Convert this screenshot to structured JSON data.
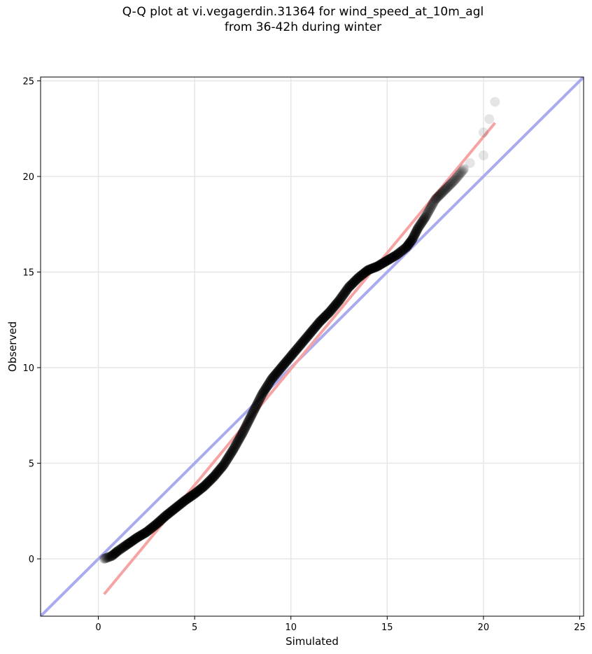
{
  "chart_data": {
    "type": "scatter",
    "title_line1": "Q-Q plot at vi.vegagerdin.31364 for wind_speed_at_10m_agl",
    "title_line2": "from 36-42h during winter",
    "xlabel": "Simulated",
    "ylabel": "Observed",
    "xlim": [
      -3.0,
      25.2
    ],
    "ylim": [
      -3.0,
      25.2
    ],
    "xticks": [
      "0",
      "5",
      "10",
      "15",
      "20",
      "25"
    ],
    "yticks": [
      "0",
      "5",
      "10",
      "15",
      "20",
      "25"
    ],
    "grid": true,
    "colors": {
      "points": "#000000",
      "identity_line": "#aaaaee",
      "fit_line": "#f5a3a3"
    },
    "identity_line": {
      "from": [
        -3.0,
        -3.0
      ],
      "to": [
        25.2,
        25.2
      ]
    },
    "fit_line": {
      "from": [
        0.3,
        -1.85
      ],
      "to": [
        20.6,
        22.8
      ]
    },
    "quantile_curve": [
      [
        0.3,
        0.0
      ],
      [
        0.7,
        0.15
      ],
      [
        1.0,
        0.4
      ],
      [
        1.5,
        0.75
      ],
      [
        2.0,
        1.1
      ],
      [
        2.5,
        1.4
      ],
      [
        3.0,
        1.8
      ],
      [
        3.5,
        2.25
      ],
      [
        4.0,
        2.65
      ],
      [
        4.5,
        3.05
      ],
      [
        5.0,
        3.4
      ],
      [
        5.5,
        3.8
      ],
      [
        6.0,
        4.3
      ],
      [
        6.5,
        4.9
      ],
      [
        7.0,
        5.7
      ],
      [
        7.5,
        6.6
      ],
      [
        8.0,
        7.6
      ],
      [
        8.5,
        8.6
      ],
      [
        9.0,
        9.4
      ],
      [
        9.5,
        10.0
      ],
      [
        10.0,
        10.6
      ],
      [
        10.5,
        11.2
      ],
      [
        11.0,
        11.8
      ],
      [
        11.5,
        12.4
      ],
      [
        12.0,
        12.9
      ],
      [
        12.5,
        13.5
      ],
      [
        13.0,
        14.2
      ],
      [
        13.5,
        14.7
      ],
      [
        14.0,
        15.1
      ],
      [
        14.5,
        15.3
      ],
      [
        15.0,
        15.6
      ],
      [
        15.5,
        15.9
      ],
      [
        16.0,
        16.3
      ],
      [
        16.3,
        16.7
      ],
      [
        16.6,
        17.3
      ],
      [
        17.0,
        17.9
      ],
      [
        17.5,
        18.8
      ],
      [
        18.0,
        19.3
      ],
      [
        18.5,
        19.8
      ],
      [
        19.0,
        20.4
      ]
    ],
    "extreme_points": [
      [
        19.3,
        20.7
      ],
      [
        20.0,
        21.1
      ],
      [
        20.0,
        22.3
      ],
      [
        20.3,
        23.0
      ],
      [
        20.6,
        23.9
      ]
    ]
  }
}
